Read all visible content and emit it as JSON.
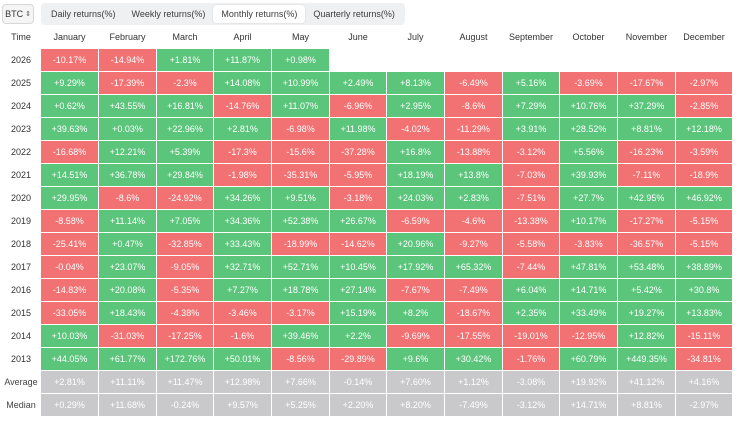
{
  "asset_select": {
    "value": "BTC"
  },
  "tabs": [
    {
      "label": "Daily returns(%)",
      "active": false
    },
    {
      "label": "Weekly returns(%)",
      "active": false
    },
    {
      "label": "Monthly returns(%)",
      "active": true
    },
    {
      "label": "Quarterly returns(%)",
      "active": false
    }
  ],
  "table": {
    "corner": "Time",
    "months": [
      "January",
      "February",
      "March",
      "April",
      "May",
      "June",
      "July",
      "August",
      "September",
      "October",
      "November",
      "December"
    ],
    "rows": [
      {
        "label": "2026",
        "values": [
          "-10.17%",
          "-14.94%",
          "+1.81%",
          "+11.87%",
          "+0.98%",
          "",
          "",
          "",
          "",
          "",
          "",
          ""
        ]
      },
      {
        "label": "2025",
        "values": [
          "+9.29%",
          "-17.39%",
          "-2.3%",
          "+14.08%",
          "+10.99%",
          "+2.49%",
          "+8.13%",
          "-6.49%",
          "+5.16%",
          "-3.69%",
          "-17.67%",
          "-2.97%"
        ]
      },
      {
        "label": "2024",
        "values": [
          "+0.62%",
          "+43.55%",
          "+16.81%",
          "-14.76%",
          "+11.07%",
          "-6.96%",
          "+2.95%",
          "-8.6%",
          "+7.29%",
          "+10.76%",
          "+37.29%",
          "-2.85%"
        ]
      },
      {
        "label": "2023",
        "values": [
          "+39.63%",
          "+0.03%",
          "+22.96%",
          "+2.81%",
          "-6.98%",
          "+11.98%",
          "-4.02%",
          "-11.29%",
          "+3.91%",
          "+28.52%",
          "+8.81%",
          "+12.18%"
        ]
      },
      {
        "label": "2022",
        "values": [
          "-16.68%",
          "+12.21%",
          "+5.39%",
          "-17.3%",
          "-15.6%",
          "-37.28%",
          "+16.8%",
          "-13.88%",
          "-3.12%",
          "+5.56%",
          "-16.23%",
          "-3.59%"
        ]
      },
      {
        "label": "2021",
        "values": [
          "+14.51%",
          "+36.78%",
          "+29.84%",
          "-1.98%",
          "-35.31%",
          "-5.95%",
          "+18.19%",
          "+13.8%",
          "-7.03%",
          "+39.93%",
          "-7.11%",
          "-18.9%"
        ]
      },
      {
        "label": "2020",
        "values": [
          "+29.95%",
          "-8.6%",
          "-24.92%",
          "+34.26%",
          "+9.51%",
          "-3.18%",
          "+24.03%",
          "+2.83%",
          "-7.51%",
          "+27.7%",
          "+42.95%",
          "+46.92%"
        ]
      },
      {
        "label": "2019",
        "values": [
          "-8.58%",
          "+11.14%",
          "+7.05%",
          "+34.36%",
          "+52.38%",
          "+26.67%",
          "-6.59%",
          "-4.6%",
          "-13.38%",
          "+10.17%",
          "-17.27%",
          "-5.15%"
        ]
      },
      {
        "label": "2018",
        "values": [
          "-25.41%",
          "+0.47%",
          "-32.85%",
          "+33.43%",
          "-18.99%",
          "-14.62%",
          "+20.96%",
          "-9.27%",
          "-5.58%",
          "-3.83%",
          "-36.57%",
          "-5.15%"
        ]
      },
      {
        "label": "2017",
        "values": [
          "-0.04%",
          "+23.07%",
          "-9.05%",
          "+32.71%",
          "+52.71%",
          "+10.45%",
          "+17.92%",
          "+65.32%",
          "-7.44%",
          "+47.81%",
          "+53.48%",
          "+38.89%"
        ]
      },
      {
        "label": "2016",
        "values": [
          "-14.83%",
          "+20.08%",
          "-5.35%",
          "+7.27%",
          "+18.78%",
          "+27.14%",
          "-7.67%",
          "-7.49%",
          "+6.04%",
          "+14.71%",
          "+5.42%",
          "+30.8%"
        ]
      },
      {
        "label": "2015",
        "values": [
          "-33.05%",
          "+18.43%",
          "-4.38%",
          "-3.46%",
          "-3.17%",
          "+15.19%",
          "+8.2%",
          "-18.67%",
          "+2.35%",
          "+33.49%",
          "+19.27%",
          "+13.83%"
        ]
      },
      {
        "label": "2014",
        "values": [
          "+10.03%",
          "-31.03%",
          "-17.25%",
          "-1.6%",
          "+39.46%",
          "+2.2%",
          "-9.69%",
          "-17.55%",
          "-19.01%",
          "-12.95%",
          "+12.82%",
          "-15.11%"
        ]
      },
      {
        "label": "2013",
        "values": [
          "+44.05%",
          "+61.77%",
          "+172.76%",
          "+50.01%",
          "-8.56%",
          "-29.89%",
          "+9.6%",
          "+30.42%",
          "-1.76%",
          "+60.79%",
          "+449.35%",
          "-34.81%"
        ]
      }
    ],
    "stats": [
      {
        "label": "Average",
        "values": [
          "+2.81%",
          "+11.11%",
          "+11.47%",
          "+12.98%",
          "+7.66%",
          "-0.14%",
          "+7.60%",
          "+1.12%",
          "-3.08%",
          "+19.92%",
          "+41.12%",
          "+4.16%"
        ]
      },
      {
        "label": "Median",
        "values": [
          "+0.29%",
          "+11.68%",
          "-0.24%",
          "+9.57%",
          "+5.25%",
          "+2.20%",
          "+8.20%",
          "-7.49%",
          "-3.12%",
          "+14.71%",
          "+8.81%",
          "-2.97%"
        ]
      }
    ]
  },
  "colors": {
    "positive": "#5bc57b",
    "negative": "#f27173",
    "summary": "#c9c9cb"
  }
}
